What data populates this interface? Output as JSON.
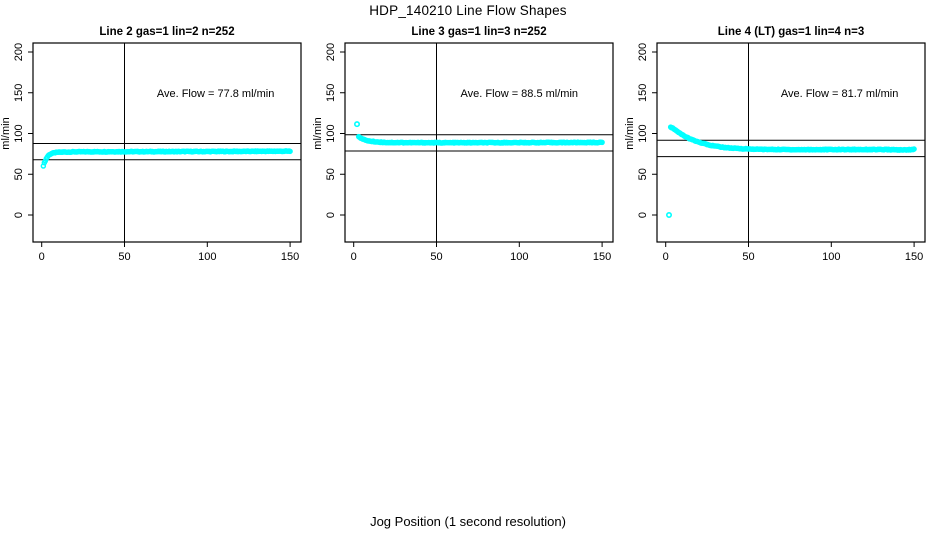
{
  "header": {
    "title": "HDP_140210  Line Flow Shapes"
  },
  "footer": {
    "xlabel": "Jog Position (1 second resolution)"
  },
  "colors": {
    "point": "#00FFFF",
    "axis": "#000000",
    "text": "#000000",
    "background": "#FFFFFF"
  },
  "chart_data": [
    {
      "type": "scatter",
      "title": "Line 2 gas=1 lin=2 n=252",
      "ylabel": "ml/min",
      "annotation": "Ave. Flow =  77.8  ml/min",
      "ave_flow_ml_min": 77.8,
      "n": 252,
      "x_ticks": [
        0,
        50,
        100,
        150
      ],
      "y_ticks": [
        0,
        50,
        100,
        150,
        200
      ],
      "xlim": [
        -5,
        156
      ],
      "ylim": [
        -33,
        212
      ],
      "grid": false,
      "vline_x": 50,
      "hlines": [
        87.8,
        67.8
      ],
      "series_anchor_x": [
        1,
        2,
        3,
        4,
        5,
        6,
        8,
        10,
        15,
        20,
        30,
        50,
        75,
        100,
        125,
        150
      ],
      "series_anchor_y": [
        60.5,
        66,
        70,
        73,
        74.5,
        75.5,
        76.5,
        77,
        77.3,
        77.5,
        77.6,
        77.7,
        77.8,
        77.9,
        78.1,
        78.3
      ],
      "outliers": [],
      "x_range": [
        1,
        150
      ],
      "points_drawn": 252,
      "jitter": 0.9,
      "annotation_at": [
        105,
        150
      ]
    },
    {
      "type": "scatter",
      "title": "Line 3 gas=1 lin=3 n=252",
      "ylabel": "ml/min",
      "annotation": "Ave. Flow =  88.5  ml/min",
      "ave_flow_ml_min": 88.5,
      "n": 252,
      "x_ticks": [
        0,
        50,
        100,
        150
      ],
      "y_ticks": [
        0,
        50,
        100,
        150,
        200
      ],
      "xlim": [
        -5,
        156
      ],
      "ylim": [
        -33,
        212
      ],
      "grid": false,
      "vline_x": 50,
      "hlines": [
        98.5,
        78.5
      ],
      "series_anchor_x": [
        3,
        4,
        5,
        6,
        8,
        10,
        15,
        20,
        30,
        50,
        75,
        100,
        125,
        150
      ],
      "series_anchor_y": [
        96.5,
        95,
        93.5,
        92.5,
        91.5,
        90.5,
        89.5,
        89,
        88.8,
        88.7,
        88.7,
        88.8,
        88.9,
        89
      ],
      "outliers": [
        [
          2,
          111.5
        ]
      ],
      "x_range": [
        3,
        150
      ],
      "points_drawn": 251,
      "jitter": 0.9,
      "annotation_at": [
        100,
        150
      ]
    },
    {
      "type": "scatter",
      "title": "Line 4 (LT) gas=1 lin=4 n=3",
      "ylabel": "ml/min",
      "annotation": "Ave. Flow =  81.7  ml/min",
      "ave_flow_ml_min": 81.7,
      "n": 3,
      "x_ticks": [
        0,
        50,
        100,
        150
      ],
      "y_ticks": [
        0,
        50,
        100,
        150,
        200
      ],
      "xlim": [
        -5,
        156
      ],
      "ylim": [
        -33,
        212
      ],
      "grid": false,
      "vline_x": 50,
      "hlines": [
        91.7,
        71.7
      ],
      "series_anchor_x": [
        3,
        4,
        5,
        6,
        8,
        10,
        12,
        15,
        20,
        25,
        30,
        35,
        40,
        50,
        60,
        80,
        100,
        120,
        135,
        143,
        150
      ],
      "series_anchor_y": [
        108,
        107,
        105.5,
        104,
        101,
        98.5,
        96,
        93,
        89.5,
        86.5,
        84.5,
        83,
        82,
        81,
        80.5,
        80.2,
        80.3,
        80.4,
        80.2,
        79.8,
        80.5
      ],
      "outliers": [
        [
          2,
          0
        ]
      ],
      "x_range": [
        3,
        150
      ],
      "points_drawn": 250,
      "jitter": 0.9,
      "annotation_at": [
        105,
        150
      ]
    }
  ]
}
